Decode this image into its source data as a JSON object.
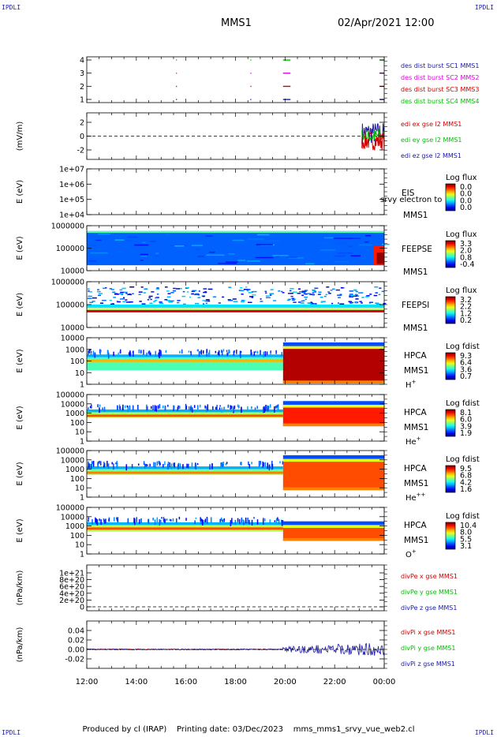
{
  "header": {
    "corner_label": "IPDLI",
    "spacecraft": "MMS1",
    "datetime": "02/Apr/2021 12:00"
  },
  "footer": {
    "produced_by": "Produced by cl (IRAP)",
    "printing_date": "Printing date: 03/Dec/2023",
    "script": "mms_mms1_srvy_vue_web2.cl"
  },
  "colors": {
    "blue": "#1a1aa8",
    "magenta": "#e000e0",
    "red": "#d00000",
    "green": "#00c000"
  },
  "chart_data": {
    "type": "multi-panel time series",
    "x_ticks": [
      "12:00",
      "14:00",
      "16:00",
      "18:00",
      "20:00",
      "22:00",
      "00:00"
    ],
    "panels": [
      {
        "id": "desdist",
        "type": "scatter",
        "y_ticks": [
          "4",
          "3",
          "2",
          "1"
        ],
        "legend": [
          {
            "label": "des dist burst SC1 MMS1",
            "color": "#1a1aa8"
          },
          {
            "label": "des dist burst SC2 MMS2",
            "color": "#e000e0"
          },
          {
            "label": "des dist burst SC3 MMS3",
            "color": "#d00000"
          },
          {
            "label": "des dist burst SC4 MMS4",
            "color": "#00c000"
          }
        ]
      },
      {
        "id": "edi",
        "type": "line",
        "ylabel": "(mV/m)",
        "y_ticks": [
          "2",
          "0",
          "-2"
        ],
        "legend": [
          {
            "label": "edi ex gse l2 MMS1",
            "color": "#d00000"
          },
          {
            "label": "edi ey gse l2 MMS1",
            "color": "#00c000"
          },
          {
            "label": "edi ez gse l2 MMS1",
            "color": "#1a1aa8"
          }
        ]
      },
      {
        "id": "eis",
        "type": "heatmap",
        "ylabel": "E (eV)",
        "y_ticks": [
          "1e+07",
          "1e+06",
          "1e+05",
          "1e+04"
        ],
        "instrument": "EIS",
        "overlay": "srvy electron to",
        "spacecraft": "MMS1",
        "colorbar_title": "Log flux",
        "colorbar_ticks": [
          "0.0",
          "0.0",
          "0.0",
          "0.0"
        ]
      },
      {
        "id": "feepse",
        "type": "heatmap",
        "ylabel": "E (eV)",
        "y_ticks": [
          "1000000",
          "100000",
          "10000"
        ],
        "instrument": "FEEPSE",
        "spacecraft": "MMS1",
        "colorbar_title": "Log flux",
        "colorbar_ticks": [
          "3.3",
          "2.0",
          "0.8",
          "-0.4"
        ]
      },
      {
        "id": "feepsi",
        "type": "heatmap",
        "ylabel": "E (eV)",
        "y_ticks": [
          "1000000",
          "100000",
          "10000"
        ],
        "instrument": "FEEPSI",
        "spacecraft": "MMS1",
        "colorbar_title": "Log flux",
        "colorbar_ticks": [
          "3.2",
          "2.2",
          "1.2",
          "0.2"
        ]
      },
      {
        "id": "hpca_h",
        "type": "heatmap",
        "ylabel": "E (eV)",
        "y_ticks": [
          "10000",
          "1000",
          "100",
          "10",
          "1"
        ],
        "instrument": "HPCA",
        "spacecraft": "MMS1",
        "species": "H",
        "species_sup": "+",
        "colorbar_title": "Log fdist",
        "colorbar_ticks": [
          "9.3",
          "6.4",
          "3.6",
          "0.7"
        ]
      },
      {
        "id": "hpca_he",
        "type": "heatmap",
        "ylabel": "E (eV)",
        "y_ticks": [
          "100000",
          "10000",
          "1000",
          "100",
          "10",
          "1"
        ],
        "instrument": "HPCA",
        "spacecraft": "MMS1",
        "species": "He",
        "species_sup": "+",
        "colorbar_title": "Log fdist",
        "colorbar_ticks": [
          "8.1",
          "6.0",
          "3.9",
          "1.9"
        ]
      },
      {
        "id": "hpca_he2",
        "type": "heatmap",
        "ylabel": "E (eV)",
        "y_ticks": [
          "100000",
          "10000",
          "1000",
          "100",
          "10",
          "1"
        ],
        "instrument": "HPCA",
        "spacecraft": "MMS1",
        "species": "He",
        "species_sup": "++",
        "colorbar_title": "Log fdist",
        "colorbar_ticks": [
          "9.5",
          "6.8",
          "4.2",
          "1.6"
        ]
      },
      {
        "id": "hpca_o",
        "type": "heatmap",
        "ylabel": "E (eV)",
        "y_ticks": [
          "100000",
          "10000",
          "1000",
          "100",
          "10",
          "1"
        ],
        "instrument": "HPCA",
        "spacecraft": "MMS1",
        "species": "O",
        "species_sup": "+",
        "colorbar_title": "Log fdist",
        "colorbar_ticks": [
          "10.4",
          "8.0",
          "5.5",
          "3.1"
        ]
      },
      {
        "id": "divpe",
        "type": "line",
        "ylabel": "(nPa/km)",
        "y_ticks": [
          "1e+21",
          "8e+20",
          "6e+20",
          "4e+20",
          "2e+20",
          "0"
        ],
        "legend": [
          {
            "label": "divPe x gse MMS1",
            "color": "#d00000"
          },
          {
            "label": "divPe y gse MMS1",
            "color": "#00c000"
          },
          {
            "label": "divPe z gse MMS1",
            "color": "#1a1aa8"
          }
        ]
      },
      {
        "id": "divpi",
        "type": "line",
        "ylabel": "(nPa/km)",
        "y_ticks": [
          "0.04",
          "0.02",
          "0.00",
          "-0.02"
        ],
        "legend": [
          {
            "label": "divPi x gse MMS1",
            "color": "#d00000"
          },
          {
            "label": "divPi y gse MMS1",
            "color": "#00c000"
          },
          {
            "label": "divPi z gse MMS1",
            "color": "#1a1aa8"
          }
        ]
      }
    ]
  }
}
